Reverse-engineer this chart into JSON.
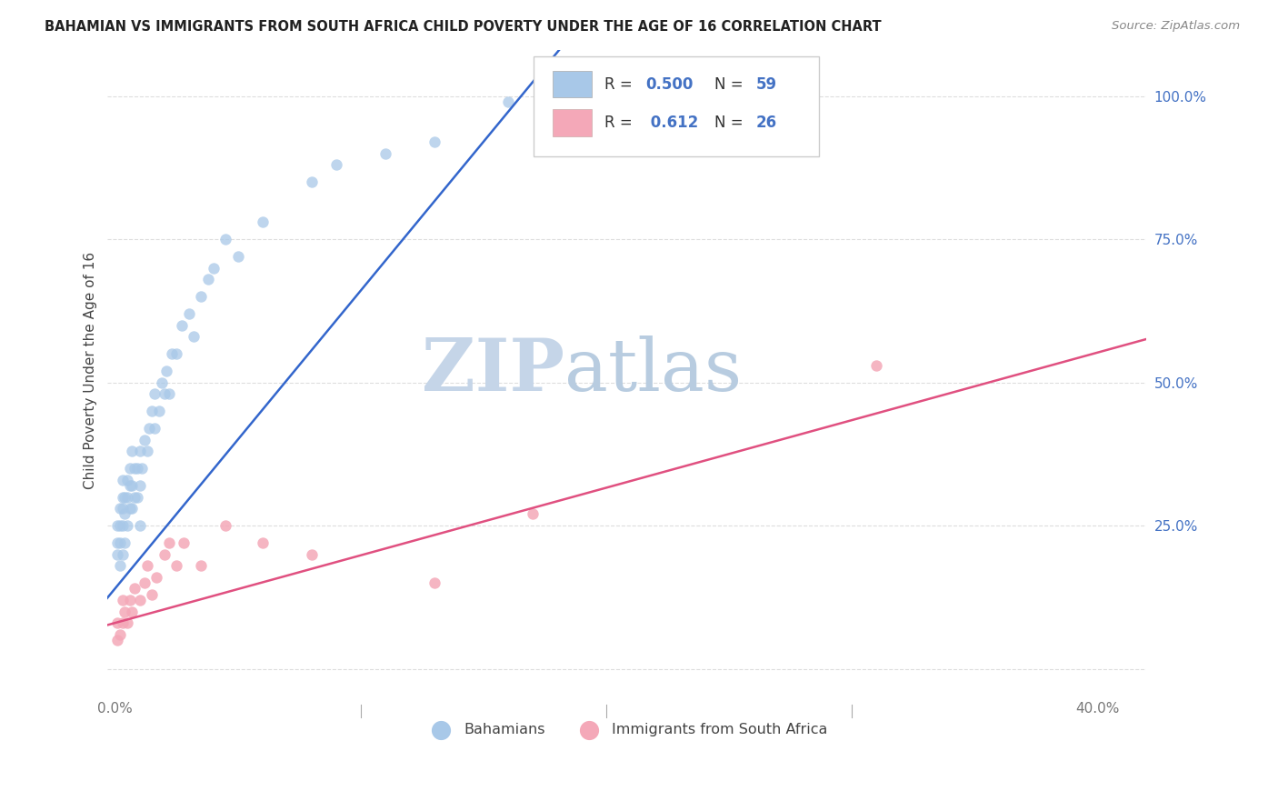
{
  "title": "BAHAMIAN VS IMMIGRANTS FROM SOUTH AFRICA CHILD POVERTY UNDER THE AGE OF 16 CORRELATION CHART",
  "source": "Source: ZipAtlas.com",
  "ylabel": "Child Poverty Under the Age of 16",
  "bahamian_R": "0.500",
  "bahamian_N": "59",
  "sa_R": "0.612",
  "sa_N": "26",
  "blue_color": "#a8c8e8",
  "pink_color": "#f4a8b8",
  "blue_line_color": "#3366cc",
  "pink_line_color": "#e05080",
  "blue_line_slope": 5.2,
  "blue_line_intercept": 0.14,
  "pink_line_slope": 1.18,
  "pink_line_intercept": 0.08,
  "xlim": [
    -0.003,
    0.42
  ],
  "ylim": [
    -0.04,
    1.08
  ],
  "xtick_values": [
    0.0,
    0.1,
    0.2,
    0.3,
    0.4
  ],
  "xtick_labels": [
    "0.0%",
    "",
    "",
    "",
    "40.0%"
  ],
  "ytick_values": [
    0.0,
    0.25,
    0.5,
    0.75,
    1.0
  ],
  "ytick_labels": [
    "",
    "25.0%",
    "50.0%",
    "75.0%",
    "100.0%"
  ],
  "watermark_zip": "ZIP",
  "watermark_atlas": "atlas",
  "watermark_color_zip": "#c8d4e8",
  "watermark_color_atlas": "#c0cce0",
  "background_color": "#ffffff",
  "grid_color": "#dddddd",
  "bahamians_x": [
    0.001,
    0.001,
    0.001,
    0.002,
    0.002,
    0.002,
    0.002,
    0.003,
    0.003,
    0.003,
    0.003,
    0.003,
    0.004,
    0.004,
    0.004,
    0.005,
    0.005,
    0.005,
    0.006,
    0.006,
    0.006,
    0.007,
    0.007,
    0.007,
    0.008,
    0.008,
    0.009,
    0.009,
    0.01,
    0.01,
    0.01,
    0.011,
    0.012,
    0.013,
    0.014,
    0.015,
    0.016,
    0.016,
    0.018,
    0.019,
    0.02,
    0.021,
    0.022,
    0.023,
    0.025,
    0.027,
    0.03,
    0.032,
    0.035,
    0.038,
    0.04,
    0.045,
    0.05,
    0.06,
    0.08,
    0.09,
    0.11,
    0.13,
    0.16
  ],
  "bahamians_y": [
    0.2,
    0.22,
    0.25,
    0.18,
    0.22,
    0.25,
    0.28,
    0.2,
    0.25,
    0.28,
    0.3,
    0.33,
    0.22,
    0.27,
    0.3,
    0.25,
    0.3,
    0.33,
    0.28,
    0.32,
    0.35,
    0.28,
    0.32,
    0.38,
    0.3,
    0.35,
    0.3,
    0.35,
    0.25,
    0.32,
    0.38,
    0.35,
    0.4,
    0.38,
    0.42,
    0.45,
    0.42,
    0.48,
    0.45,
    0.5,
    0.48,
    0.52,
    0.48,
    0.55,
    0.55,
    0.6,
    0.62,
    0.58,
    0.65,
    0.68,
    0.7,
    0.75,
    0.72,
    0.78,
    0.85,
    0.88,
    0.9,
    0.92,
    0.99
  ],
  "sa_x": [
    0.001,
    0.001,
    0.002,
    0.003,
    0.003,
    0.004,
    0.005,
    0.006,
    0.007,
    0.008,
    0.01,
    0.012,
    0.013,
    0.015,
    0.017,
    0.02,
    0.022,
    0.025,
    0.028,
    0.035,
    0.045,
    0.06,
    0.08,
    0.13,
    0.17,
    0.31
  ],
  "sa_y": [
    0.05,
    0.08,
    0.06,
    0.08,
    0.12,
    0.1,
    0.08,
    0.12,
    0.1,
    0.14,
    0.12,
    0.15,
    0.18,
    0.13,
    0.16,
    0.2,
    0.22,
    0.18,
    0.22,
    0.18,
    0.25,
    0.22,
    0.2,
    0.15,
    0.27,
    0.53
  ]
}
